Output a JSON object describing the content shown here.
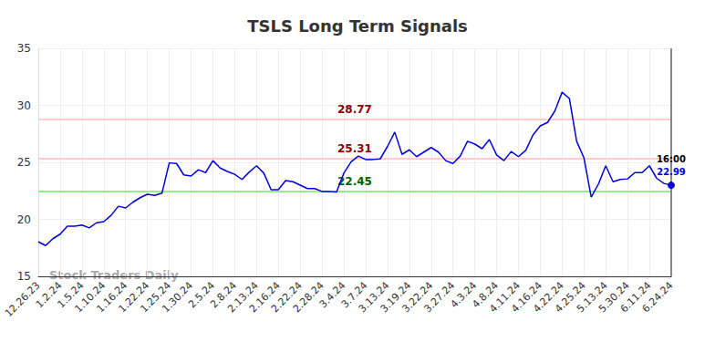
{
  "chart_data": {
    "type": "line",
    "title": "TSLS Long Term Signals",
    "categories": [
      "12.26.23",
      null,
      null,
      "1.2.24",
      null,
      null,
      "1.5.24",
      null,
      null,
      "1.10.24",
      null,
      null,
      "1.16.24",
      null,
      null,
      "1.22.24",
      null,
      null,
      "1.25.24",
      null,
      null,
      "1.30.24",
      null,
      null,
      "2.5.24",
      null,
      null,
      "2.8.24",
      null,
      null,
      "2.13.24",
      null,
      null,
      "2.16.24",
      null,
      null,
      "2.22.24",
      null,
      null,
      "2.28.24",
      null,
      null,
      "3.4.24",
      null,
      null,
      "3.7.24",
      null,
      null,
      "3.13.24",
      null,
      null,
      "3.19.24",
      null,
      null,
      "3.22.24",
      null,
      null,
      "3.27.24",
      null,
      null,
      "4.3.24",
      null,
      null,
      "4.8.24",
      null,
      null,
      "4.11.24",
      null,
      null,
      "4.16.24",
      null,
      null,
      "4.22.24",
      null,
      null,
      "4.25.24",
      null,
      null,
      "5.13.24",
      null,
      null,
      "5.30.24",
      null,
      null,
      "6.11.24",
      null,
      null,
      "6.24.24"
    ],
    "values": [
      18.04,
      17.7,
      18.3,
      18.7,
      19.4,
      19.4,
      19.5,
      19.25,
      19.7,
      19.8,
      20.35,
      21.15,
      21.0,
      21.5,
      21.9,
      22.2,
      22.1,
      22.3,
      24.95,
      24.9,
      23.9,
      23.8,
      24.35,
      24.1,
      25.15,
      24.5,
      24.2,
      23.95,
      23.5,
      24.15,
      24.7,
      24.05,
      22.6,
      22.6,
      23.4,
      23.3,
      23.0,
      22.7,
      22.7,
      22.45,
      22.45,
      22.4,
      24.05,
      25.05,
      25.55,
      25.25,
      25.25,
      25.3,
      26.4,
      27.65,
      25.7,
      26.1,
      25.5,
      25.9,
      26.3,
      25.9,
      25.15,
      24.9,
      25.55,
      26.85,
      26.6,
      26.2,
      27.0,
      25.65,
      25.15,
      25.95,
      25.5,
      26.05,
      27.4,
      28.2,
      28.5,
      29.5,
      31.15,
      30.6,
      26.85,
      25.4,
      21.95,
      23.1,
      24.7,
      23.3,
      23.5,
      23.55,
      24.1,
      24.1,
      24.7,
      23.6,
      23.15,
      22.99
    ],
    "color": "#0000dd",
    "ylim": [
      15,
      35
    ],
    "yticks": [
      15,
      20,
      25,
      30,
      35
    ],
    "grid": true,
    "levels": [
      {
        "value": 28.77,
        "color": "#8b0000"
      },
      {
        "value": 25.31,
        "color": "#8b0000"
      },
      {
        "value": 22.45,
        "color": "#006400"
      }
    ],
    "last_time": "16:00",
    "watermark": "Stock Traders Daily"
  }
}
